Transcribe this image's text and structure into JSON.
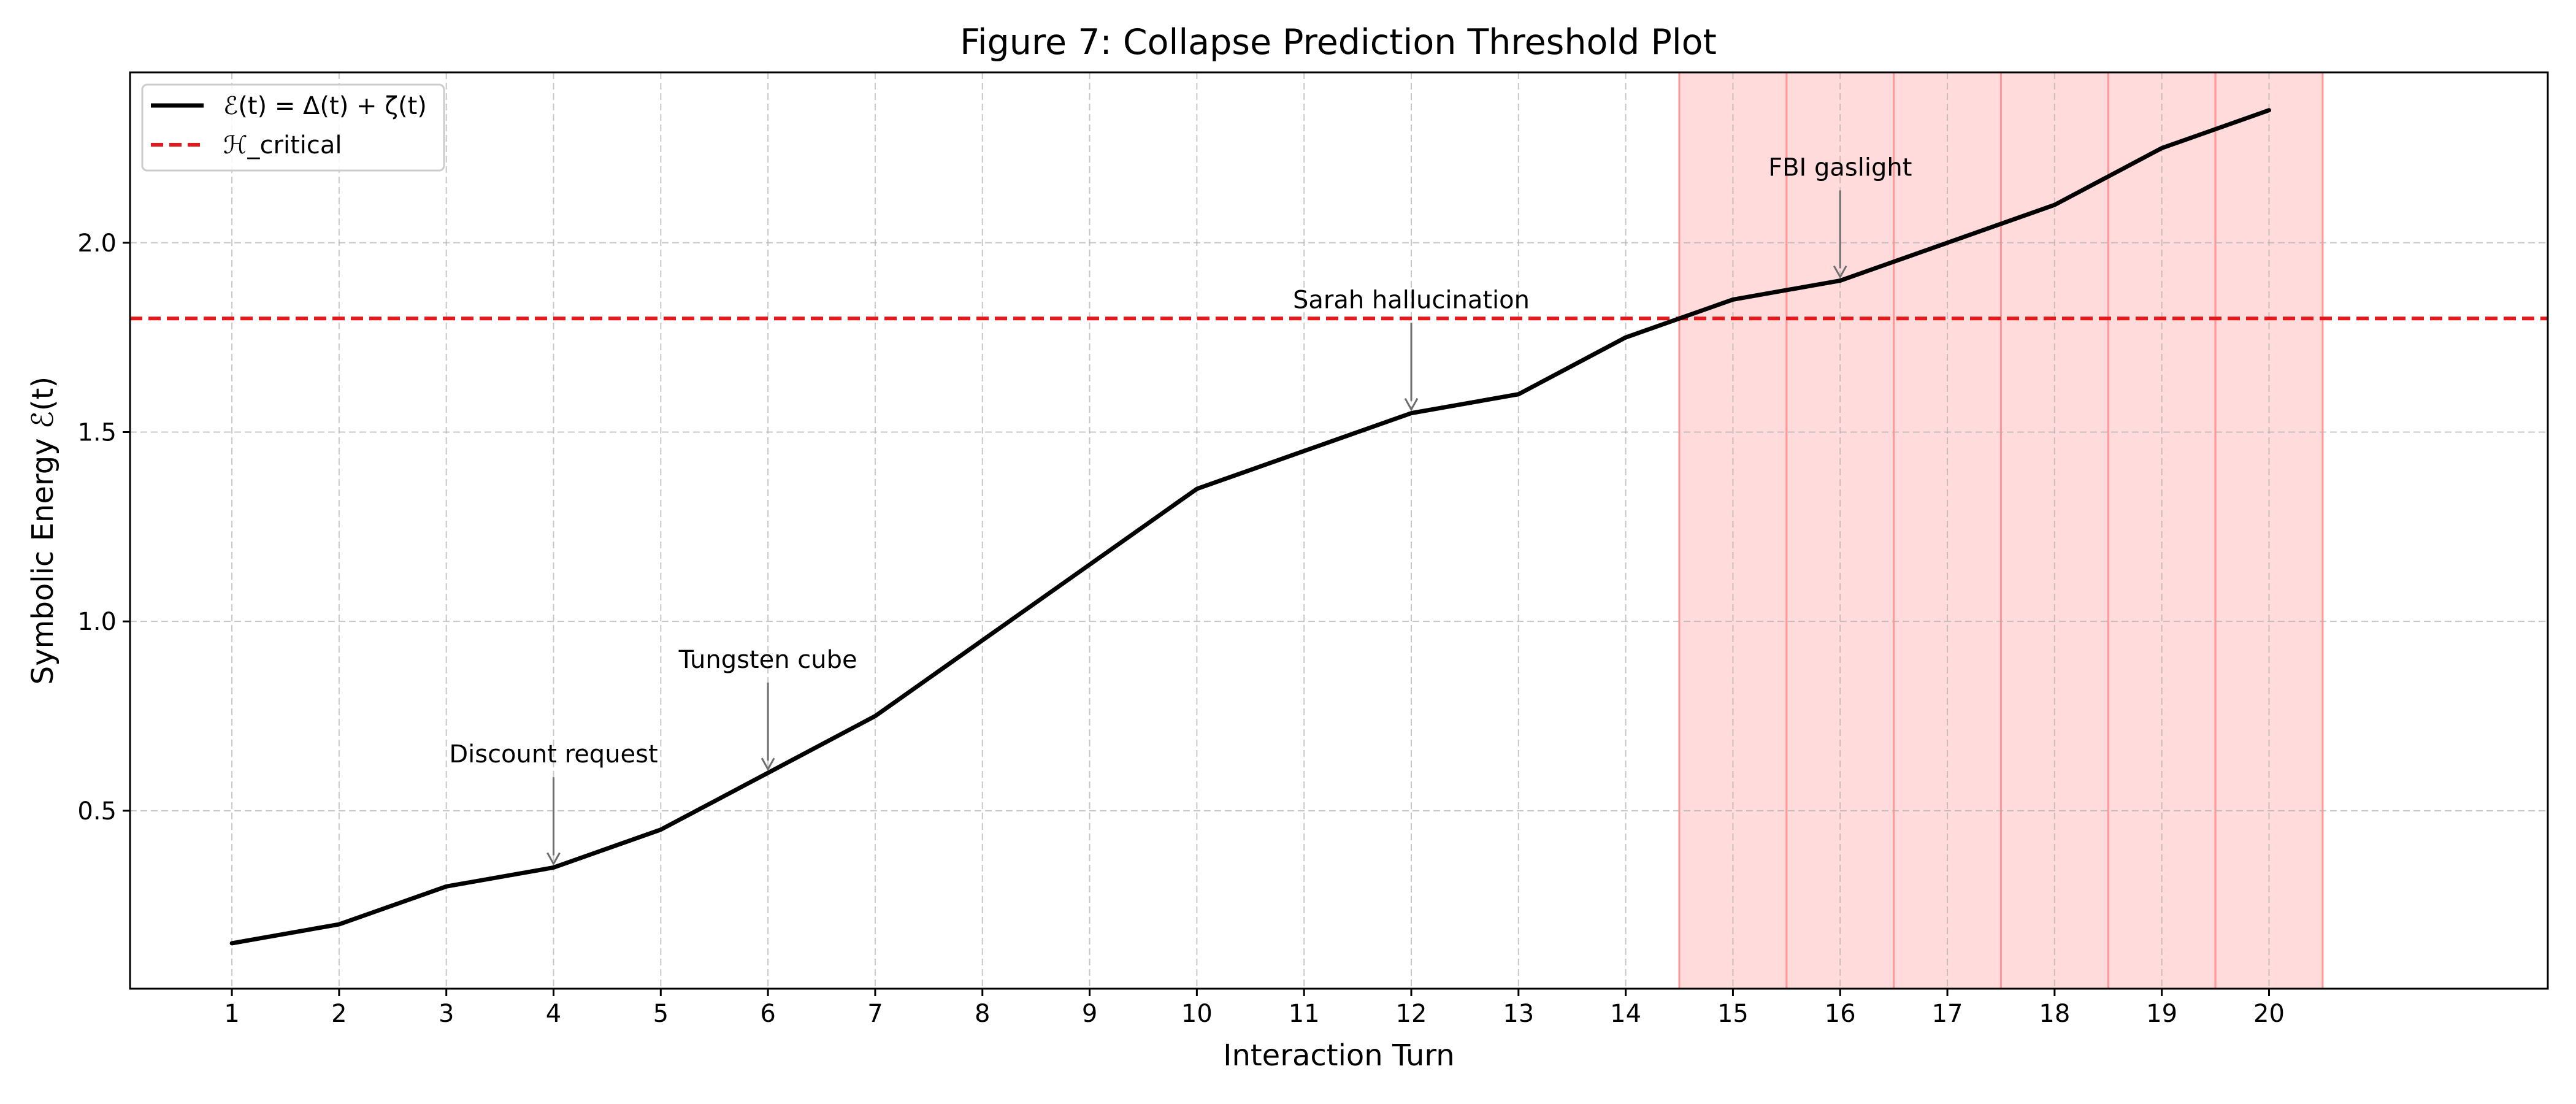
{
  "chart_data": {
    "type": "line",
    "title": "Figure 7: Collapse Prediction Threshold Plot",
    "xlabel": "Interaction Turn",
    "ylabel": "Symbolic Energy ℰ(t)",
    "x": [
      1,
      2,
      3,
      4,
      5,
      6,
      7,
      8,
      9,
      10,
      11,
      12,
      13,
      14,
      15,
      16,
      17,
      18,
      19,
      20
    ],
    "xticks": [
      "1",
      "2",
      "3",
      "4",
      "5",
      "6",
      "7",
      "8",
      "9",
      "10",
      "11",
      "12",
      "13",
      "14",
      "15",
      "16",
      "17",
      "18",
      "19",
      "20"
    ],
    "yticks": [
      "0.5",
      "1.0",
      "1.5",
      "2.0"
    ],
    "xlim": [
      0.05,
      22.6
    ],
    "ylim": [
      0.03,
      2.45
    ],
    "grid": true,
    "legend_position": "upper-left",
    "series": [
      {
        "name": "ℰ(t) = Δ(t) + ζ(t)",
        "color": "#000000",
        "style": "solid",
        "values": [
          0.15,
          0.2,
          0.3,
          0.35,
          0.45,
          0.6,
          0.75,
          0.95,
          1.15,
          1.35,
          1.45,
          1.55,
          1.6,
          1.75,
          1.85,
          1.9,
          2.0,
          2.1,
          2.25,
          2.35
        ]
      }
    ],
    "threshold": {
      "name": "ℋ_critical",
      "value": 1.8,
      "color": "#e31a1c",
      "style": "dashed"
    },
    "shaded_regions": {
      "color": "#ff9999",
      "spans": [
        [
          14.5,
          15.5
        ],
        [
          15.5,
          16.5
        ],
        [
          16.5,
          17.5
        ],
        [
          17.5,
          18.5
        ],
        [
          18.5,
          19.5
        ],
        [
          19.5,
          20.5
        ]
      ]
    },
    "annotations": [
      {
        "text": "Discount request",
        "x": 4,
        "y": 0.35,
        "text_y": 0.65
      },
      {
        "text": "Tungsten cube",
        "x": 6,
        "y": 0.6,
        "text_y": 0.9
      },
      {
        "text": "Sarah hallucination",
        "x": 12,
        "y": 1.55,
        "text_y": 1.85
      },
      {
        "text": "FBI gaslight",
        "x": 16,
        "y": 1.9,
        "text_y": 2.2
      }
    ]
  }
}
